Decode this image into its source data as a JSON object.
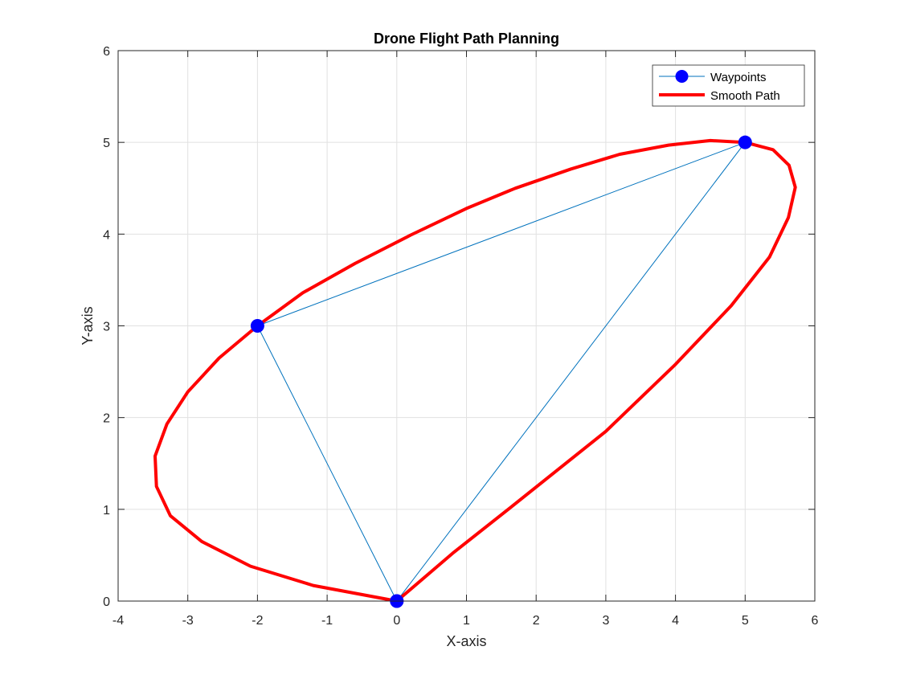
{
  "chart_data": {
    "type": "line",
    "title": "Drone Flight Path Planning",
    "xlabel": "X-axis",
    "ylabel": "Y-axis",
    "xlim": [
      -4,
      6
    ],
    "ylim": [
      0,
      6
    ],
    "xticks": [
      -4,
      -3,
      -2,
      -1,
      0,
      1,
      2,
      3,
      4,
      5,
      6
    ],
    "yticks": [
      0,
      1,
      2,
      3,
      4,
      5,
      6
    ],
    "grid": true,
    "legend_position": "top-right",
    "series": [
      {
        "name": "Waypoints",
        "style": "line-with-markers",
        "color": "#0072bd",
        "marker_color": "#0000ff",
        "points": [
          [
            0,
            0
          ],
          [
            -2,
            3
          ],
          [
            5,
            5
          ],
          [
            0,
            0
          ]
        ]
      },
      {
        "name": "Smooth Path",
        "style": "line",
        "color": "#ff0000",
        "points": [
          [
            0,
            0
          ],
          [
            -1.2,
            0.17
          ],
          [
            -2.1,
            0.38
          ],
          [
            -2.8,
            0.65
          ],
          [
            -3.25,
            0.93
          ],
          [
            -3.45,
            1.25
          ],
          [
            -3.47,
            1.58
          ],
          [
            -3.3,
            1.93
          ],
          [
            -3.0,
            2.28
          ],
          [
            -2.55,
            2.65
          ],
          [
            -2.0,
            3.0
          ],
          [
            -1.35,
            3.36
          ],
          [
            -0.6,
            3.68
          ],
          [
            0.2,
            3.99
          ],
          [
            1.0,
            4.28
          ],
          [
            1.7,
            4.5
          ],
          [
            2.5,
            4.71
          ],
          [
            3.2,
            4.87
          ],
          [
            3.9,
            4.97
          ],
          [
            4.5,
            5.02
          ],
          [
            5.0,
            5.0
          ],
          [
            5.4,
            4.92
          ],
          [
            5.63,
            4.75
          ],
          [
            5.72,
            4.51
          ],
          [
            5.62,
            4.18
          ],
          [
            5.35,
            3.75
          ],
          [
            4.8,
            3.22
          ],
          [
            4.0,
            2.58
          ],
          [
            3.0,
            1.85
          ],
          [
            1.6,
            1.0
          ],
          [
            0.8,
            0.52
          ],
          [
            0,
            0
          ]
        ]
      }
    ]
  }
}
